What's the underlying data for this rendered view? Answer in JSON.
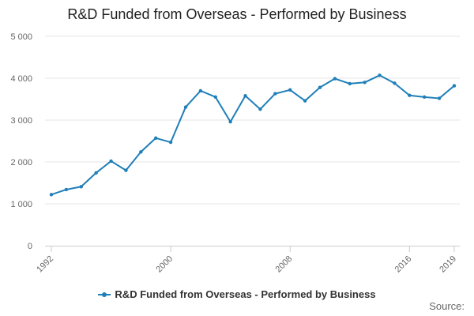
{
  "chart_data": {
    "type": "line",
    "title": "R&D Funded from Overseas - Performed by Business",
    "xlabel": "",
    "ylabel": "",
    "x": [
      1992,
      1993,
      1994,
      1995,
      1996,
      1997,
      1998,
      1999,
      2000,
      2001,
      2002,
      2003,
      2004,
      2005,
      2006,
      2007,
      2008,
      2009,
      2010,
      2011,
      2012,
      2013,
      2014,
      2015,
      2016,
      2017,
      2018,
      2019
    ],
    "series": [
      {
        "name": "R&D Funded from Overseas - Performed by Business",
        "color": "#1f7fb8",
        "values": [
          1220,
          1340,
          1410,
          1740,
          2020,
          1800,
          2240,
          2570,
          2470,
          3310,
          3700,
          3550,
          2960,
          3580,
          3260,
          3630,
          3720,
          3460,
          3780,
          3990,
          3870,
          3900,
          4070,
          3880,
          3590,
          3550,
          3520,
          3820
        ]
      }
    ],
    "xlim": [
      1992,
      2019
    ],
    "ylim": [
      0,
      5000
    ],
    "x_ticks": [
      1992,
      2000,
      2008,
      2016,
      2019
    ],
    "y_ticks": [
      0,
      1000,
      2000,
      3000,
      4000,
      5000
    ],
    "y_tick_labels": [
      "0",
      "1 000",
      "2 000",
      "3 000",
      "4 000",
      "5 000"
    ],
    "grid": "horizontal",
    "legend_position": "bottom"
  },
  "legend": {
    "label": "R&D Funded from Overseas - Performed by Business"
  },
  "source_label": "Source:"
}
